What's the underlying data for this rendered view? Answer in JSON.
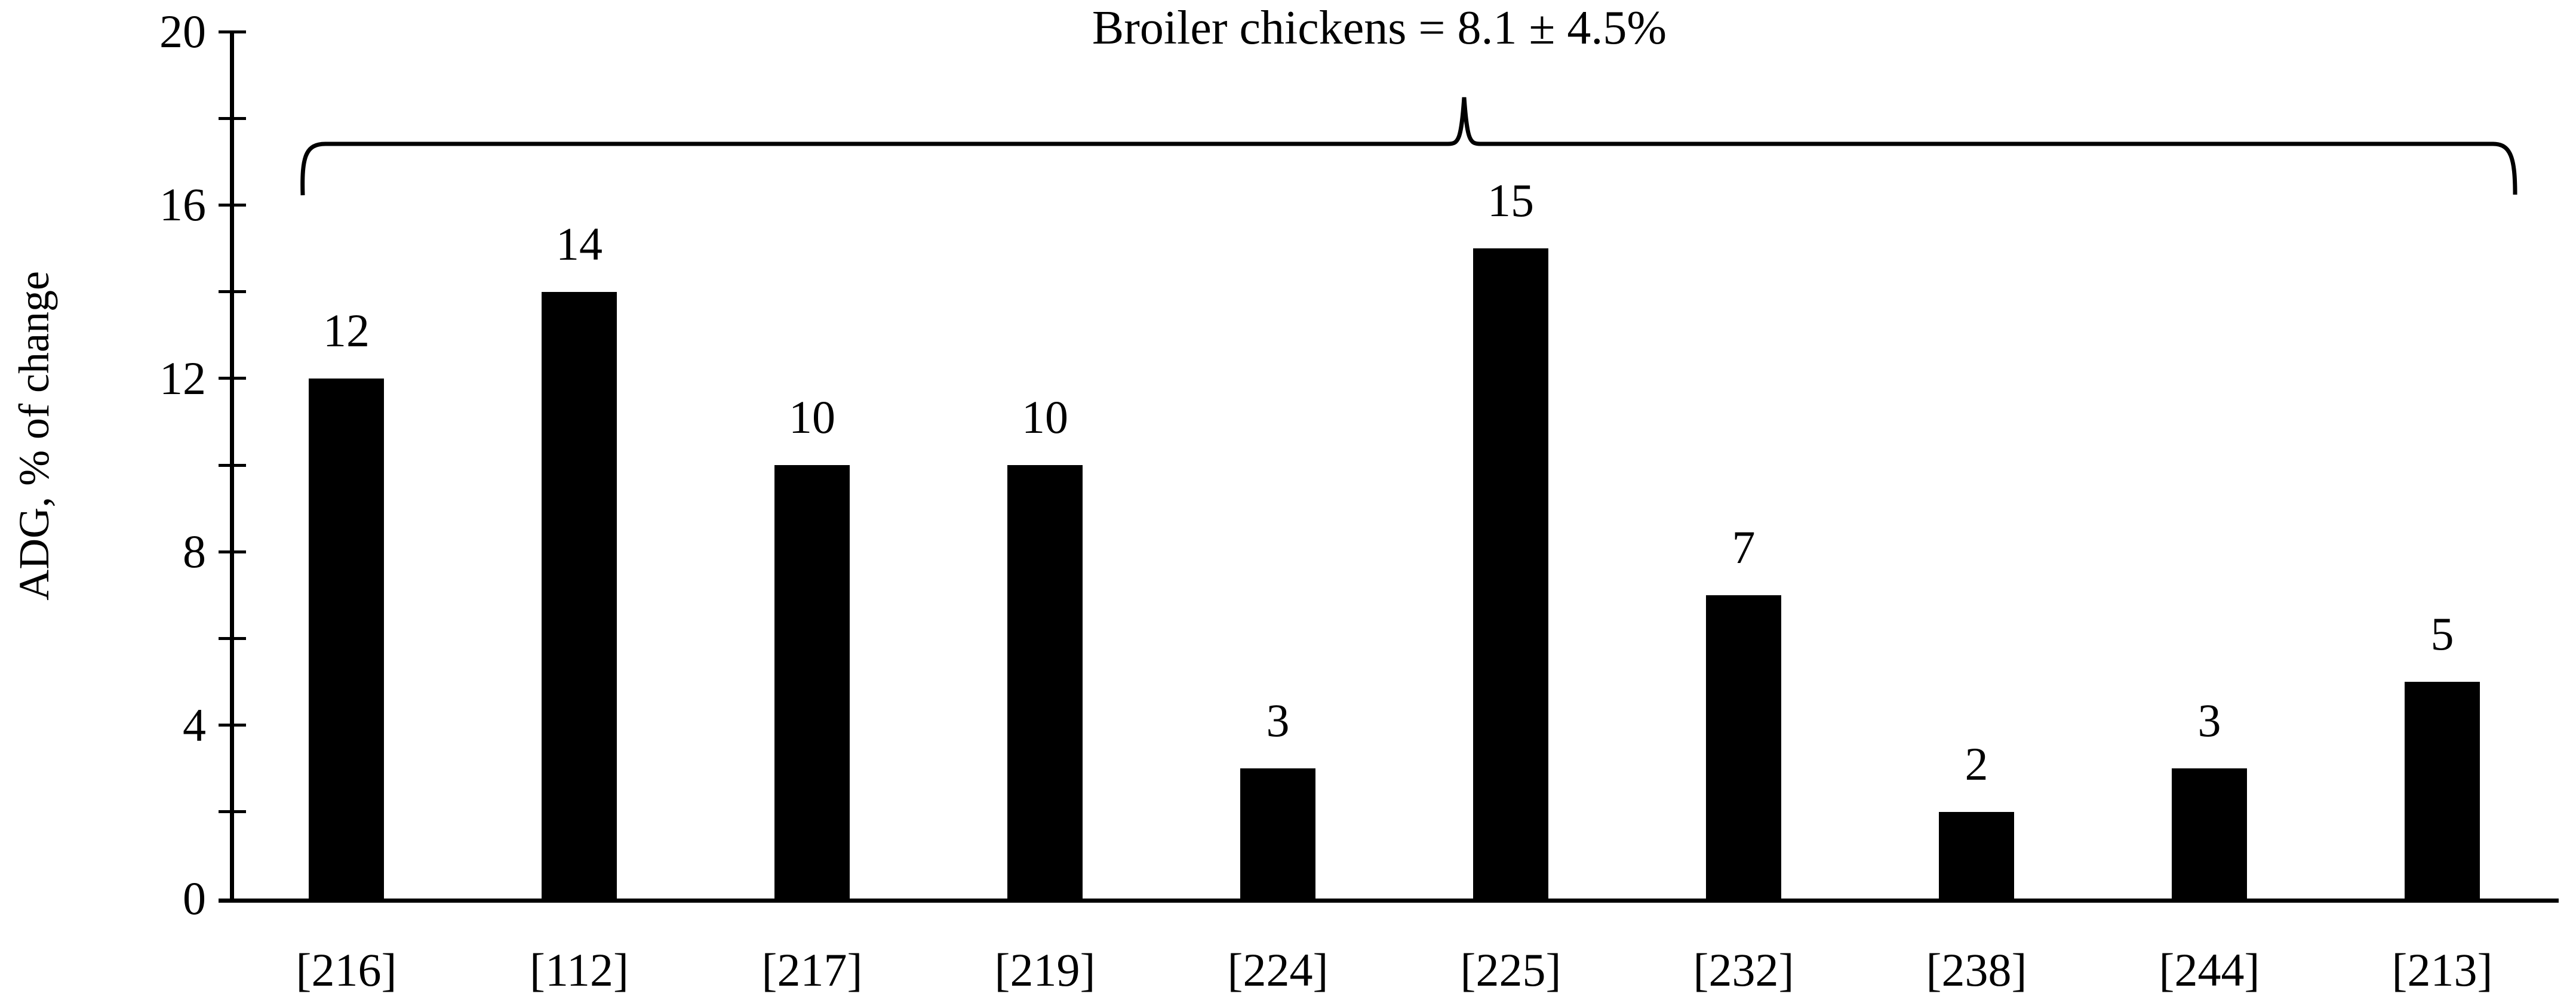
{
  "chart_data": {
    "type": "bar",
    "title": "Broiler chickens = 8.1 ± 4.5%",
    "categories": [
      "[216]",
      "[112]",
      "[217]",
      "[219]",
      "[224]",
      "[225]",
      "[232]",
      "[238]",
      "[244]",
      "[213]"
    ],
    "values": [
      12,
      14,
      10,
      10,
      3,
      15,
      7,
      2,
      3,
      5
    ],
    "value_labels": [
      "12",
      "14",
      "10",
      "10",
      "3",
      "15",
      "7",
      "2",
      "3",
      "5"
    ],
    "xlabel": "",
    "ylabel": "ADG, % of change",
    "ylim": [
      0,
      20
    ],
    "y_major_ticks": [
      0,
      4,
      8,
      12,
      16,
      20
    ],
    "y_major_tick_labels": [
      "0",
      "4",
      "8",
      "12",
      "16",
      "20"
    ],
    "y_minor_tick_step": 2,
    "grid": false,
    "legend": null,
    "annotations": {
      "brace": {
        "description": "horizontal curly brace spanning all bars, pointing up to the title",
        "label": "Broiler chickens = 8.1 ± 4.5%"
      }
    },
    "colors": {
      "background": "#ffffff",
      "bar": "#000000",
      "axis": "#000000",
      "text": "#000000"
    }
  }
}
